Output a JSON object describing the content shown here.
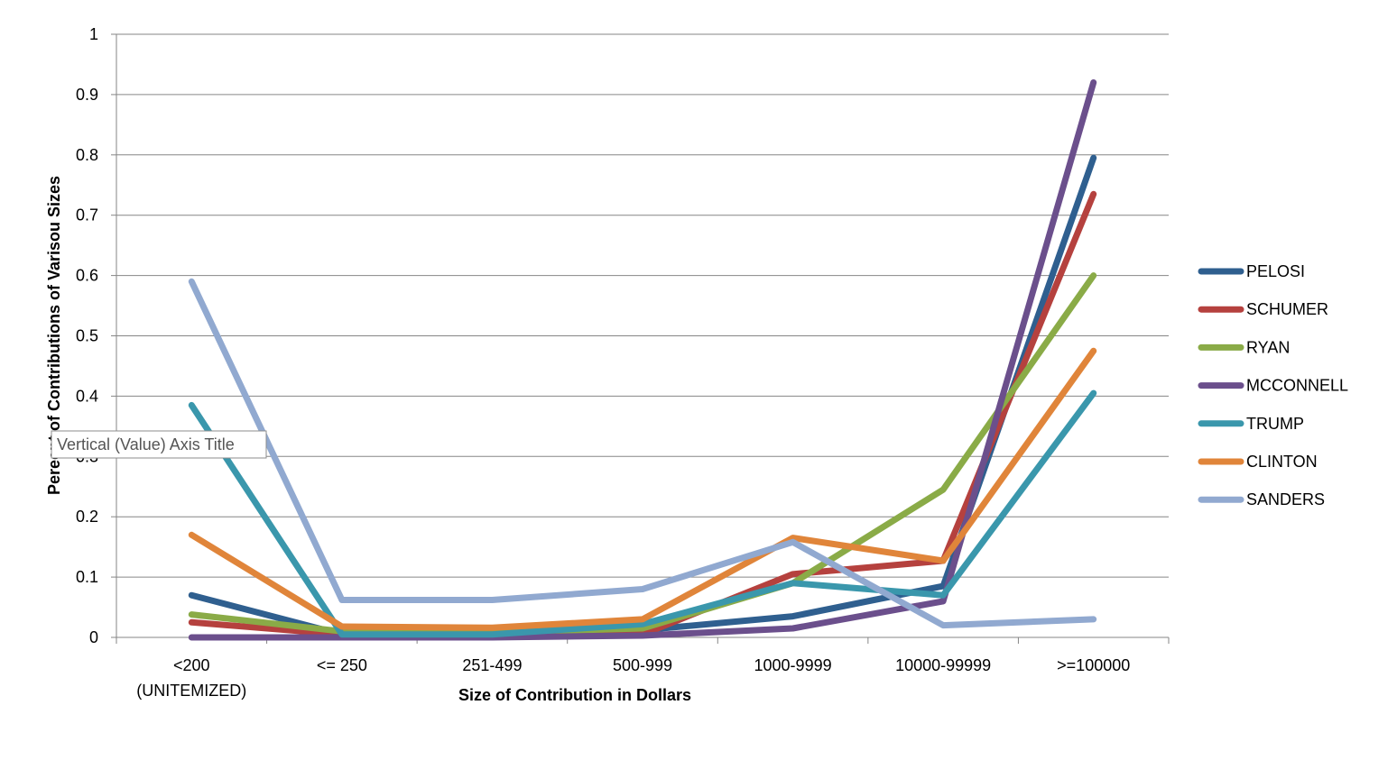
{
  "chart_data": {
    "type": "line",
    "title": "",
    "xlabel": "Size of Contribution in Dollars",
    "ylabel": "Perecnt of Contributions  of Varisou Sizes",
    "ylim": [
      0,
      1
    ],
    "yticks": [
      "0",
      "0.1",
      "0.2",
      "0.3",
      "0.4",
      "0.5",
      "0.6",
      "0.7",
      "0.8",
      "0.9",
      "1"
    ],
    "categories": [
      [
        "<200",
        "(UNITEMIZED)"
      ],
      [
        "<= 250"
      ],
      [
        "251-499"
      ],
      [
        "500-999"
      ],
      [
        "1000-9999"
      ],
      [
        "10000-99999"
      ],
      [
        ">=100000"
      ]
    ],
    "grid": true,
    "legend_position": "right",
    "series": [
      {
        "name": "PELOSI",
        "color": "#2f5f8f",
        "values": [
          0.07,
          0.005,
          0.005,
          0.012,
          0.035,
          0.085,
          0.795
        ]
      },
      {
        "name": "SCHUMER",
        "color": "#b5413e",
        "values": [
          0.025,
          0.005,
          0.005,
          0.005,
          0.105,
          0.127,
          0.735
        ]
      },
      {
        "name": "RYAN",
        "color": "#8aab47",
        "values": [
          0.038,
          0.01,
          0.008,
          0.015,
          0.09,
          0.245,
          0.6
        ]
      },
      {
        "name": "MCCONNELL",
        "color": "#6b4f8c",
        "values": [
          0.0,
          0.0,
          0.0,
          0.003,
          0.015,
          0.06,
          0.92
        ]
      },
      {
        "name": "TRUMP",
        "color": "#3a97ac",
        "values": [
          0.385,
          0.005,
          0.005,
          0.022,
          0.09,
          0.07,
          0.405
        ]
      },
      {
        "name": "CLINTON",
        "color": "#e0853a",
        "values": [
          0.17,
          0.018,
          0.016,
          0.03,
          0.165,
          0.127,
          0.475
        ]
      },
      {
        "name": "SANDERS",
        "color": "#91a9d0",
        "values": [
          0.59,
          0.062,
          0.062,
          0.08,
          0.158,
          0.02,
          0.03
        ]
      }
    ]
  },
  "tooltip": {
    "text": "Vertical (Value) Axis Title"
  }
}
